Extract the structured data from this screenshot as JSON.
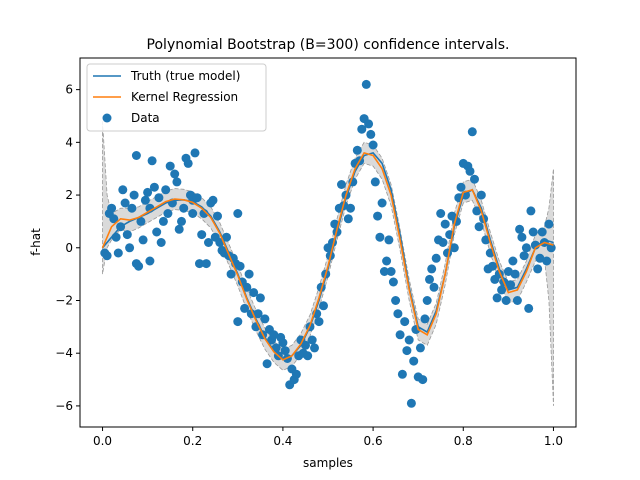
{
  "chart_data": {
    "type": "line",
    "title": "Polynomial Bootstrap (B=300) confidence intervals.",
    "xlabel": "samples",
    "ylabel": "f-hat",
    "xlim": [
      -0.05,
      1.05
    ],
    "ylim": [
      -6.8,
      7.2
    ],
    "xticks": [
      0.0,
      0.2,
      0.4,
      0.6,
      0.8,
      1.0
    ],
    "xtick_labels": [
      "0.0",
      "0.2",
      "0.4",
      "0.6",
      "0.8",
      "1.0"
    ],
    "yticks": [
      -6,
      -4,
      -2,
      0,
      2,
      4,
      6
    ],
    "ytick_labels": [
      "−6",
      "−4",
      "−2",
      "0",
      "2",
      "4",
      "6"
    ],
    "grid": false,
    "legend_position": "top-left",
    "legend": [
      {
        "label": "Truth (true model)",
        "kind": "line",
        "color": "#1f77b4"
      },
      {
        "label": "Kernel Regression",
        "kind": "line",
        "color": "#ff7f0e"
      },
      {
        "label": "Data",
        "kind": "marker",
        "color": "#1f77b4"
      }
    ],
    "series": [
      {
        "name": "Truth (true model)",
        "color": "#1f77b4",
        "x": [
          0.0,
          0.02,
          0.04,
          0.06,
          0.08,
          0.1,
          0.12,
          0.14,
          0.16,
          0.18,
          0.2,
          0.22,
          0.24,
          0.26,
          0.28,
          0.3,
          0.32,
          0.34,
          0.36,
          0.38,
          0.4,
          0.42,
          0.44,
          0.46,
          0.48,
          0.5,
          0.52,
          0.54,
          0.56,
          0.58,
          0.6,
          0.62,
          0.64,
          0.66,
          0.68,
          0.7,
          0.72,
          0.74,
          0.76,
          0.78,
          0.8,
          0.82,
          0.84,
          0.86,
          0.88,
          0.9,
          0.92,
          0.94,
          0.96,
          0.98,
          1.0
        ],
        "y": [
          0.0,
          0.4,
          0.8,
          1.0,
          1.15,
          1.3,
          1.5,
          1.7,
          1.8,
          1.82,
          1.75,
          1.55,
          1.2,
          0.6,
          -0.2,
          -1.0,
          -1.9,
          -2.7,
          -3.4,
          -3.9,
          -4.2,
          -4.1,
          -3.7,
          -3.0,
          -2.0,
          -0.8,
          0.6,
          1.9,
          2.9,
          3.5,
          3.6,
          3.2,
          2.2,
          0.5,
          -1.5,
          -3.0,
          -3.2,
          -2.4,
          -1.0,
          0.8,
          2.0,
          2.2,
          1.5,
          0.3,
          -0.8,
          -1.6,
          -1.5,
          -0.8,
          0.0,
          0.3,
          0.2
        ]
      },
      {
        "name": "Kernel Regression",
        "color": "#ff7f0e",
        "x": [
          0.0,
          0.02,
          0.04,
          0.06,
          0.08,
          0.1,
          0.12,
          0.14,
          0.16,
          0.18,
          0.2,
          0.22,
          0.24,
          0.26,
          0.28,
          0.3,
          0.32,
          0.34,
          0.36,
          0.38,
          0.4,
          0.42,
          0.44,
          0.46,
          0.48,
          0.5,
          0.52,
          0.54,
          0.56,
          0.58,
          0.6,
          0.62,
          0.64,
          0.66,
          0.68,
          0.7,
          0.72,
          0.74,
          0.76,
          0.78,
          0.8,
          0.82,
          0.84,
          0.86,
          0.88,
          0.9,
          0.92,
          0.94,
          0.96,
          0.98,
          1.0
        ],
        "y": [
          0.0,
          0.8,
          1.1,
          1.05,
          1.15,
          1.35,
          1.55,
          1.75,
          1.85,
          1.82,
          1.72,
          1.5,
          1.15,
          0.55,
          -0.25,
          -1.05,
          -1.95,
          -2.75,
          -3.45,
          -3.95,
          -4.25,
          -4.1,
          -3.65,
          -2.95,
          -1.9,
          -0.7,
          0.7,
          2.0,
          3.0,
          3.6,
          3.5,
          3.0,
          2.0,
          0.3,
          -1.6,
          -3.1,
          -3.3,
          -2.5,
          -1.0,
          0.9,
          2.1,
          2.2,
          1.4,
          0.2,
          -0.9,
          -1.7,
          -1.6,
          -0.9,
          0.0,
          0.2,
          0.1
        ]
      }
    ],
    "confidence_band": {
      "name": "Bootstrap confidence band",
      "color": "#bbbbbb",
      "x": [
        0.0,
        0.01,
        0.02,
        0.04,
        0.06,
        0.08,
        0.1,
        0.12,
        0.14,
        0.16,
        0.18,
        0.2,
        0.22,
        0.24,
        0.26,
        0.28,
        0.3,
        0.32,
        0.34,
        0.36,
        0.38,
        0.4,
        0.42,
        0.44,
        0.46,
        0.48,
        0.5,
        0.52,
        0.54,
        0.56,
        0.58,
        0.6,
        0.62,
        0.64,
        0.66,
        0.68,
        0.7,
        0.72,
        0.74,
        0.76,
        0.78,
        0.8,
        0.82,
        0.84,
        0.86,
        0.88,
        0.9,
        0.92,
        0.94,
        0.96,
        0.98,
        0.99,
        1.0
      ],
      "lower": [
        -1.0,
        0.0,
        0.3,
        0.7,
        0.6,
        0.75,
        0.95,
        1.15,
        1.35,
        1.45,
        1.42,
        1.32,
        1.1,
        0.75,
        0.15,
        -0.65,
        -1.45,
        -2.35,
        -3.15,
        -3.85,
        -4.35,
        -4.65,
        -4.5,
        -4.05,
        -3.35,
        -2.3,
        -1.1,
        0.3,
        1.6,
        2.6,
        3.2,
        3.1,
        2.6,
        1.6,
        -0.1,
        -2.0,
        -3.5,
        -3.7,
        -2.9,
        -1.4,
        0.5,
        1.7,
        1.8,
        1.0,
        -0.2,
        -1.3,
        -2.1,
        -2.0,
        -1.3,
        -0.5,
        -0.4,
        -2.0,
        -6.0
      ],
      "upper": [
        4.8,
        2.0,
        1.3,
        1.5,
        1.5,
        1.55,
        1.75,
        1.95,
        2.15,
        2.25,
        2.22,
        2.12,
        1.9,
        1.55,
        0.95,
        0.15,
        -0.65,
        -1.55,
        -2.35,
        -3.05,
        -3.55,
        -3.85,
        -3.7,
        -3.25,
        -2.55,
        -1.5,
        -0.3,
        1.1,
        2.4,
        3.4,
        4.0,
        3.9,
        3.4,
        2.4,
        0.7,
        -1.2,
        -2.7,
        -2.9,
        -2.1,
        -0.6,
        1.3,
        2.5,
        2.6,
        1.8,
        0.6,
        -0.5,
        -1.3,
        -1.2,
        -0.5,
        0.5,
        0.8,
        1.5,
        3.0
      ]
    },
    "scatter": {
      "name": "Data",
      "color": "#1f77b4",
      "points": [
        [
          0.005,
          -0.2
        ],
        [
          0.01,
          -0.3
        ],
        [
          0.015,
          1.3
        ],
        [
          0.02,
          1.5
        ],
        [
          0.025,
          1.1
        ],
        [
          0.03,
          0.4
        ],
        [
          0.035,
          -0.2
        ],
        [
          0.04,
          0.8
        ],
        [
          0.045,
          2.2
        ],
        [
          0.05,
          1.7
        ],
        [
          0.055,
          0.5
        ],
        [
          0.06,
          0.0
        ],
        [
          0.065,
          1.5
        ],
        [
          0.07,
          2.0
        ],
        [
          0.075,
          3.5
        ],
        [
          0.075,
          -0.6
        ],
        [
          0.08,
          -0.7
        ],
        [
          0.085,
          1.0
        ],
        [
          0.09,
          0.3
        ],
        [
          0.095,
          1.8
        ],
        [
          0.1,
          2.1
        ],
        [
          0.105,
          1.5
        ],
        [
          0.105,
          -0.5
        ],
        [
          0.11,
          3.3
        ],
        [
          0.115,
          2.3
        ],
        [
          0.12,
          0.6
        ],
        [
          0.125,
          1.9
        ],
        [
          0.13,
          0.2
        ],
        [
          0.135,
          1.0
        ],
        [
          0.14,
          2.2
        ],
        [
          0.145,
          1.3
        ],
        [
          0.15,
          3.1
        ],
        [
          0.155,
          1.7
        ],
        [
          0.16,
          2.8
        ],
        [
          0.165,
          2.5
        ],
        [
          0.17,
          0.7
        ],
        [
          0.175,
          1.0
        ],
        [
          0.18,
          1.5
        ],
        [
          0.185,
          3.4
        ],
        [
          0.19,
          3.2
        ],
        [
          0.195,
          2.0
        ],
        [
          0.2,
          1.8
        ],
        [
          0.2,
          1.3
        ],
        [
          0.205,
          3.6
        ],
        [
          0.21,
          1.9
        ],
        [
          0.215,
          -0.6
        ],
        [
          0.22,
          0.5
        ],
        [
          0.225,
          1.3
        ],
        [
          0.23,
          -0.6
        ],
        [
          0.235,
          0.2
        ],
        [
          0.24,
          1.7
        ],
        [
          0.245,
          1.8
        ],
        [
          0.25,
          0.4
        ],
        [
          0.255,
          1.2
        ],
        [
          0.26,
          0.2
        ],
        [
          0.265,
          -0.1
        ],
        [
          0.27,
          -0.2
        ],
        [
          0.275,
          0.4
        ],
        [
          0.28,
          -0.3
        ],
        [
          0.285,
          -1.0
        ],
        [
          0.29,
          -0.4
        ],
        [
          0.295,
          -0.6
        ],
        [
          0.3,
          1.3
        ],
        [
          0.3,
          -2.8
        ],
        [
          0.305,
          -0.7
        ],
        [
          0.31,
          -1.3
        ],
        [
          0.315,
          -2.3
        ],
        [
          0.32,
          -1.5
        ],
        [
          0.325,
          -1.0
        ],
        [
          0.33,
          -2.5
        ],
        [
          0.335,
          -1.7
        ],
        [
          0.34,
          -3.0
        ],
        [
          0.345,
          -2.5
        ],
        [
          0.35,
          -1.9
        ],
        [
          0.355,
          -3.3
        ],
        [
          0.36,
          -2.7
        ],
        [
          0.365,
          -4.4
        ],
        [
          0.37,
          -3.1
        ],
        [
          0.375,
          -3.5
        ],
        [
          0.38,
          -3.3
        ],
        [
          0.385,
          -3.8
        ],
        [
          0.39,
          -4.1
        ],
        [
          0.395,
          -3.4
        ],
        [
          0.4,
          -3.6
        ],
        [
          0.405,
          -3.9
        ],
        [
          0.41,
          -4.2
        ],
        [
          0.415,
          -5.2
        ],
        [
          0.42,
          -4.6
        ],
        [
          0.425,
          -5.0
        ],
        [
          0.43,
          -4.8
        ],
        [
          0.435,
          -4.1
        ],
        [
          0.44,
          -3.5
        ],
        [
          0.445,
          -4.0
        ],
        [
          0.45,
          -3.7
        ],
        [
          0.455,
          -4.1
        ],
        [
          0.46,
          -3.0
        ],
        [
          0.465,
          -3.5
        ],
        [
          0.47,
          -3.8
        ],
        [
          0.475,
          -2.5
        ],
        [
          0.48,
          -2.8
        ],
        [
          0.485,
          -1.5
        ],
        [
          0.49,
          -2.2
        ],
        [
          0.495,
          -1.0
        ],
        [
          0.5,
          0.0
        ],
        [
          0.505,
          -0.3
        ],
        [
          0.51,
          0.2
        ],
        [
          0.515,
          0.9
        ],
        [
          0.52,
          0.6
        ],
        [
          0.525,
          1.5
        ],
        [
          0.53,
          2.4
        ],
        [
          0.535,
          1.6
        ],
        [
          0.54,
          2.0
        ],
        [
          0.545,
          1.1
        ],
        [
          0.55,
          1.5
        ],
        [
          0.555,
          2.5
        ],
        [
          0.56,
          3.2
        ],
        [
          0.565,
          3.7
        ],
        [
          0.57,
          3.3
        ],
        [
          0.575,
          4.5
        ],
        [
          0.58,
          4.9
        ],
        [
          0.585,
          6.2
        ],
        [
          0.59,
          4.7
        ],
        [
          0.595,
          4.3
        ],
        [
          0.6,
          3.9
        ],
        [
          0.605,
          2.5
        ],
        [
          0.61,
          1.2
        ],
        [
          0.615,
          0.4
        ],
        [
          0.62,
          1.7
        ],
        [
          0.625,
          -0.9
        ],
        [
          0.63,
          -0.5
        ],
        [
          0.635,
          0.3
        ],
        [
          0.64,
          -0.9
        ],
        [
          0.645,
          -1.3
        ],
        [
          0.65,
          -2.0
        ],
        [
          0.655,
          -2.5
        ],
        [
          0.66,
          -3.3
        ],
        [
          0.665,
          -4.8
        ],
        [
          0.67,
          -2.8
        ],
        [
          0.675,
          -3.9
        ],
        [
          0.68,
          -3.5
        ],
        [
          0.685,
          -5.9
        ],
        [
          0.69,
          -4.3
        ],
        [
          0.695,
          -3.1
        ],
        [
          0.7,
          -4.9
        ],
        [
          0.705,
          -3.8
        ],
        [
          0.71,
          -5.0
        ],
        [
          0.715,
          -2.7
        ],
        [
          0.72,
          -2.0
        ],
        [
          0.725,
          -1.2
        ],
        [
          0.73,
          -0.8
        ],
        [
          0.735,
          -1.5
        ],
        [
          0.74,
          -0.4
        ],
        [
          0.745,
          0.3
        ],
        [
          0.75,
          1.3
        ],
        [
          0.755,
          0.2
        ],
        [
          0.76,
          0.9
        ],
        [
          0.765,
          -0.2
        ],
        [
          0.77,
          0.5
        ],
        [
          0.775,
          1.2
        ],
        [
          0.78,
          0.0
        ],
        [
          0.785,
          1.0
        ],
        [
          0.79,
          1.9
        ],
        [
          0.795,
          2.3
        ],
        [
          0.8,
          3.2
        ],
        [
          0.805,
          2.0
        ],
        [
          0.81,
          3.1
        ],
        [
          0.815,
          2.9
        ],
        [
          0.82,
          4.4
        ],
        [
          0.825,
          2.6
        ],
        [
          0.83,
          1.4
        ],
        [
          0.835,
          0.8
        ],
        [
          0.84,
          2.0
        ],
        [
          0.845,
          1.1
        ],
        [
          0.85,
          0.3
        ],
        [
          0.855,
          -0.8
        ],
        [
          0.86,
          -0.2
        ],
        [
          0.865,
          -0.7
        ],
        [
          0.87,
          -1.2
        ],
        [
          0.875,
          -1.9
        ],
        [
          0.88,
          -1.0
        ],
        [
          0.885,
          -1.6
        ],
        [
          0.89,
          -1.3
        ],
        [
          0.895,
          -2.0
        ],
        [
          0.9,
          -0.9
        ],
        [
          0.905,
          -1.4
        ],
        [
          0.91,
          -0.5
        ],
        [
          0.915,
          -1.0
        ],
        [
          0.92,
          -2.0
        ],
        [
          0.925,
          0.7
        ],
        [
          0.93,
          0.4
        ],
        [
          0.935,
          -0.3
        ],
        [
          0.94,
          0.0
        ],
        [
          0.945,
          -2.3
        ],
        [
          0.95,
          1.4
        ],
        [
          0.955,
          0.6
        ],
        [
          0.96,
          0.1
        ],
        [
          0.965,
          -0.8
        ],
        [
          0.97,
          -0.4
        ],
        [
          0.975,
          0.6
        ],
        [
          0.98,
          0.2
        ],
        [
          0.985,
          -0.5
        ],
        [
          0.99,
          0.9
        ],
        [
          0.995,
          0.0
        ]
      ]
    }
  }
}
